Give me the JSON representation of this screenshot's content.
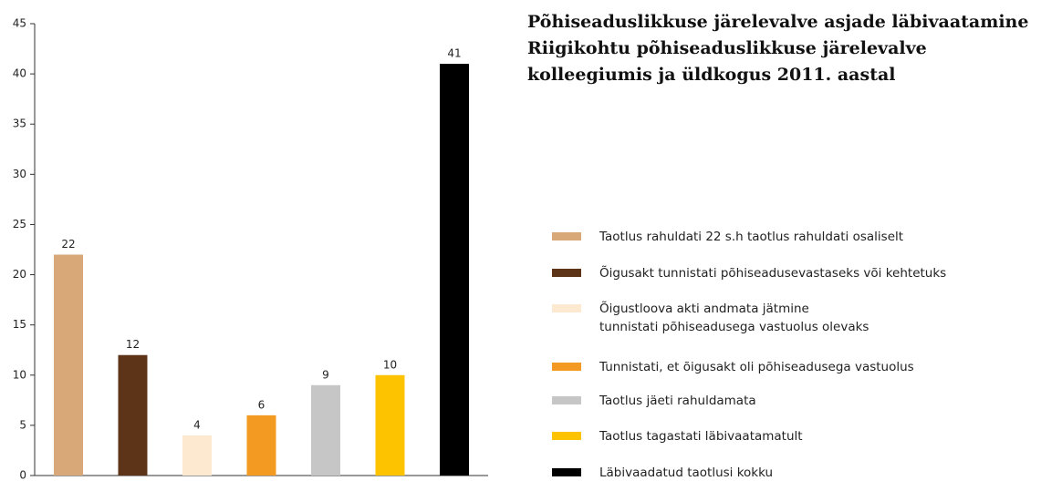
{
  "chart_data": {
    "type": "bar",
    "title": "Põhiseaduslikkuse järelevalve asjade läbivaatamine\nRiigikohtu põhiseaduslikkuse järelevalve\nkolleegiumis ja üldkogus 2011. aastal",
    "categories": [
      "Taotlus rahuldati 22 s.h taotlus rahuldati osaliselt",
      "Õigusakt tunnistati põhiseadusevastaseks või kehtetuks",
      "Õigustloova akti andmata jätmine\ntunnistati põhiseadusega vastuolus olevaks",
      "Tunnistati, et õigusakt oli põhiseadusega vastuolus",
      "Taotlus jäeti rahuldamata",
      "Taotlus tagastati läbivaatamatult",
      "Läbivaadatud taotlusi kokku"
    ],
    "values": [
      22,
      12,
      4,
      6,
      9,
      10,
      41
    ],
    "colors": [
      "#d9a878",
      "#5e3418",
      "#fde8d0",
      "#f39a22",
      "#c6c6c6",
      "#fdc300",
      "#000000"
    ],
    "ylim": [
      0,
      45
    ],
    "yticks": [
      0,
      5,
      10,
      15,
      20,
      25,
      30,
      35,
      40,
      45
    ],
    "grid": false
  }
}
